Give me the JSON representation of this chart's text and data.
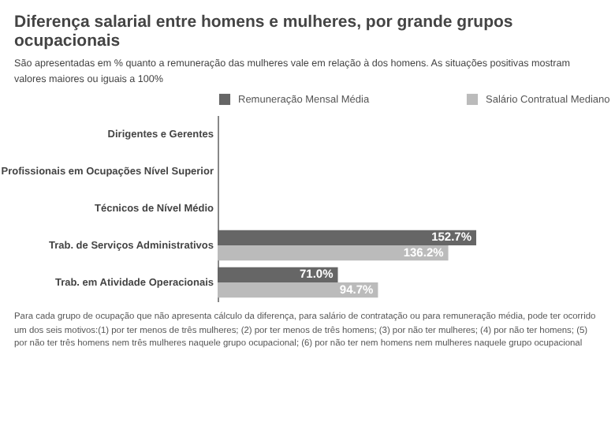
{
  "chart_data": {
    "type": "bar",
    "orientation": "horizontal",
    "title": "Diferença salarial entre homens e mulheres, por grande grupos ocupacionais",
    "subtitle": "São apresentadas em % quanto a remuneração das mulheres vale em relação à dos homens. As situações positivas mostram valores maiores ou iguais a 100%",
    "categories": [
      "Dirigentes e Gerentes",
      "Profissionais em Ocupações Nível Superior",
      "Técnicos de Nível Médio",
      "Trab. de Serviços Administrativos",
      "Trab. em Atividade Operacionais"
    ],
    "series": [
      {
        "name": "Remuneração Mensal Média",
        "color": "#666666",
        "values": [
          null,
          null,
          null,
          152.7,
          71.0
        ],
        "value_labels": [
          null,
          null,
          null,
          "152.7%",
          "71.0%"
        ]
      },
      {
        "name": "Salário Contratual Mediano",
        "color": "#bbbbbb",
        "values": [
          null,
          null,
          null,
          136.2,
          94.7
        ],
        "value_labels": [
          null,
          null,
          null,
          "136.2%",
          "94.7%"
        ]
      }
    ],
    "legend": "top",
    "annotations": [
      "Para cada grupo de ocupação que não apresenta cálculo da diferença, para salário de contratação ou para remuneração média, pode ter ocorrido um dos seis motivos:(1) por ter menos de três mulheres; (2) por ter menos de três homens; (3) por não ter mulheres; (4) por não ter homens; (5) por não ter três homens nem três mulheres naquele grupo ocupacional; (6) por não ter nem homens nem mulheres naquele grupo ocupacional"
    ]
  }
}
